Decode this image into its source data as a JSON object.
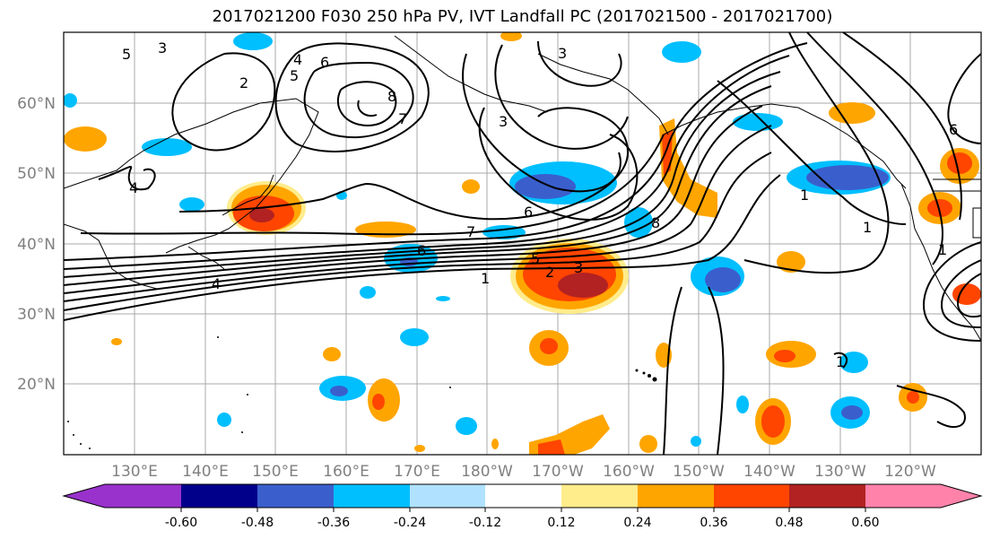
{
  "title": "2017021200 F030 250 hPa PV, IVT Landfall PC (2017021500 - 2017021700)",
  "map": {
    "lon_labels": [
      "130°E",
      "140°E",
      "150°E",
      "160°E",
      "170°E",
      "180°W",
      "170°W",
      "160°W",
      "150°W",
      "140°W",
      "130°W",
      "120°W"
    ],
    "lat_labels": [
      "60°N",
      "50°N",
      "40°N",
      "30°N",
      "20°N"
    ],
    "contour_labels": [
      "5",
      "3",
      "2",
      "5",
      "4",
      "6",
      "8",
      "7",
      "3",
      "4",
      "6",
      "7",
      "1",
      "6",
      "5",
      "2",
      "3",
      "1",
      "4",
      "8",
      "1",
      "1",
      "1",
      "3",
      "6"
    ]
  },
  "colorbar": {
    "tick_labels": [
      "-0.60",
      "-0.48",
      "-0.36",
      "-0.24",
      "-0.12",
      "0.12",
      "0.24",
      "0.36",
      "0.48",
      "0.60"
    ],
    "colors": [
      "#9932cc",
      "#00008b",
      "#3a5fcd",
      "#00bfff",
      "#b0e2ff",
      "#ffffff",
      "#ffec8b",
      "#ffa500",
      "#ff4500",
      "#b22222",
      "#ff82ab"
    ]
  }
}
